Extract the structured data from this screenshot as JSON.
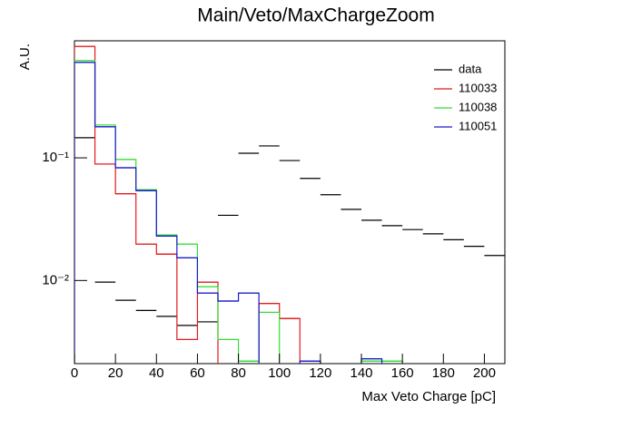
{
  "chart_data": {
    "type": "histogram",
    "title": "Main/Veto/MaxChargeZoom",
    "xlabel": "Max Veto Charge [pC]",
    "ylabel": "A.U.",
    "bins": [
      0,
      10,
      20,
      30,
      40,
      50,
      60,
      70,
      80,
      90,
      100,
      110,
      120,
      130,
      140,
      150,
      160,
      170,
      180,
      190,
      200,
      210
    ],
    "xlim": [
      0,
      210
    ],
    "xticks": [
      0,
      20,
      40,
      60,
      80,
      100,
      120,
      140,
      160,
      180,
      200
    ],
    "ylim": [
      0.0021,
      0.9
    ],
    "log_y": true,
    "yticks": [
      {
        "value": 0.1,
        "label": "10⁻¹"
      },
      {
        "value": 0.01,
        "label": "10⁻²"
      }
    ],
    "legend": "top-right",
    "series": [
      {
        "name": "data",
        "color": "#000000",
        "step": false,
        "values": [
          0.146,
          0.0097,
          0.0069,
          0.0057,
          0.0051,
          0.0043,
          0.0046,
          0.034,
          0.109,
          0.125,
          0.095,
          0.068,
          0.05,
          0.038,
          0.031,
          0.028,
          0.026,
          0.024,
          0.0215,
          0.019,
          0.016
        ]
      },
      {
        "name": "110033",
        "color": "#e41a1c",
        "step": true,
        "values": [
          0.81,
          0.089,
          0.051,
          0.0198,
          0.0164,
          0.0033,
          0.0097,
          0,
          0,
          0.0065,
          0.0049,
          0,
          0,
          0,
          0,
          0,
          0,
          0,
          0,
          0,
          0
        ]
      },
      {
        "name": "110038",
        "color": "#33dd33",
        "step": true,
        "values": [
          0.62,
          0.185,
          0.097,
          0.055,
          0.0235,
          0.0198,
          0.0089,
          0.0033,
          0.0022,
          0.0055,
          0,
          0,
          0,
          0,
          0.0022,
          0.0022,
          0,
          0,
          0,
          0,
          0
        ]
      },
      {
        "name": "110051",
        "color": "#1a1acc",
        "step": true,
        "values": [
          0.6,
          0.179,
          0.083,
          0.054,
          0.023,
          0.0153,
          0.0079,
          0.0068,
          0.0079,
          0,
          0,
          0.0022,
          0,
          0,
          0.0023,
          0,
          0,
          0,
          0,
          0,
          0
        ]
      }
    ]
  }
}
